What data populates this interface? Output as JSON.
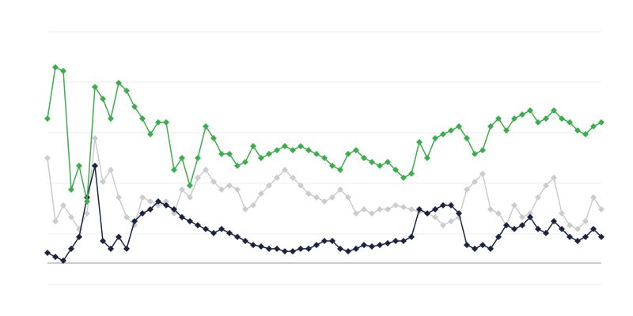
{
  "chart_data": {
    "type": "line",
    "ylim": [
      0,
      100
    ],
    "yticks": [
      0,
      20,
      40,
      60,
      80,
      100
    ],
    "grid": true,
    "marker": "diamond",
    "series": [
      {
        "color": "#cccccc",
        "values": [
          50,
          25,
          31.3,
          26.6,
          21.9,
          28.1,
          57.8,
          40.6,
          45.3,
          34.4,
          26.6,
          23.4,
          34.4,
          32.8,
          31.3,
          32.8,
          28.1,
          37.5,
          34.4,
          42.2,
          45.3,
          40.6,
          37.5,
          39.1,
          37.5,
          29.7,
          31.3,
          35.9,
          39.1,
          42.2,
          45.3,
          42.2,
          39.1,
          35.9,
          34.4,
          32.8,
          34.4,
          37.5,
          34.4,
          28.1,
          29.7,
          28.1,
          29.7,
          29.7,
          31.3,
          30.6,
          29.7,
          28.8,
          28.1,
          26.6,
          23.4,
          25,
          26.6,
          37.5,
          40.6,
          43.8,
          29.7,
          28.1,
          23.4,
          31.3,
          26.6,
          28.1,
          34.4,
          39.1,
          42.2,
          28.1,
          23.4,
          21.9,
          25,
          34.4,
          29.7
        ]
      },
      {
        "color": "#1b2340",
        "values": [
          12.5,
          10.9,
          9.4,
          14.1,
          18.8,
          34.4,
          46.9,
          17.2,
          14.1,
          18.8,
          14.1,
          25,
          28.1,
          29.7,
          32.8,
          31.3,
          29.7,
          26.6,
          25,
          23.4,
          21.9,
          20.3,
          21.9,
          20.3,
          18.8,
          17.2,
          15.6,
          15,
          14.1,
          14.1,
          13.1,
          13.1,
          14.1,
          14.1,
          15.6,
          17.2,
          17.2,
          14.1,
          13.1,
          14.1,
          15.6,
          15,
          15.6,
          16.3,
          17.2,
          17.2,
          18.8,
          29.7,
          28.1,
          29.7,
          31.3,
          31.3,
          28.1,
          15.6,
          14.1,
          15.6,
          14.1,
          18.8,
          23.4,
          21.9,
          23.4,
          26.6,
          21.9,
          20.3,
          25,
          21.9,
          18.8,
          17.2,
          18.8,
          21.9,
          18.8
        ]
      },
      {
        "color": "#3aae4a",
        "values": [
          65.6,
          85.9,
          84.4,
          37.5,
          46.9,
          32.8,
          78.1,
          73.4,
          65.6,
          79.7,
          76.6,
          70.3,
          65.6,
          59.4,
          64.1,
          64.1,
          45.3,
          50,
          39.1,
          50,
          62.5,
          57.8,
          51.6,
          51.6,
          46.9,
          48.4,
          54.7,
          50,
          51.6,
          53.1,
          54.7,
          53.1,
          54.7,
          53.1,
          51.6,
          50,
          46.9,
          45.3,
          51.6,
          53.1,
          50,
          48.4,
          46.9,
          48.4,
          45.3,
          42.2,
          43.8,
          56.3,
          50,
          57.8,
          59.4,
          60.9,
          62.5,
          57.8,
          51.6,
          53.1,
          62.5,
          65.6,
          60.9,
          65.6,
          67.2,
          68.8,
          64.1,
          65.6,
          68.8,
          65.6,
          64.1,
          60.9,
          59.4,
          62.5,
          64.1
        ]
      }
    ]
  }
}
